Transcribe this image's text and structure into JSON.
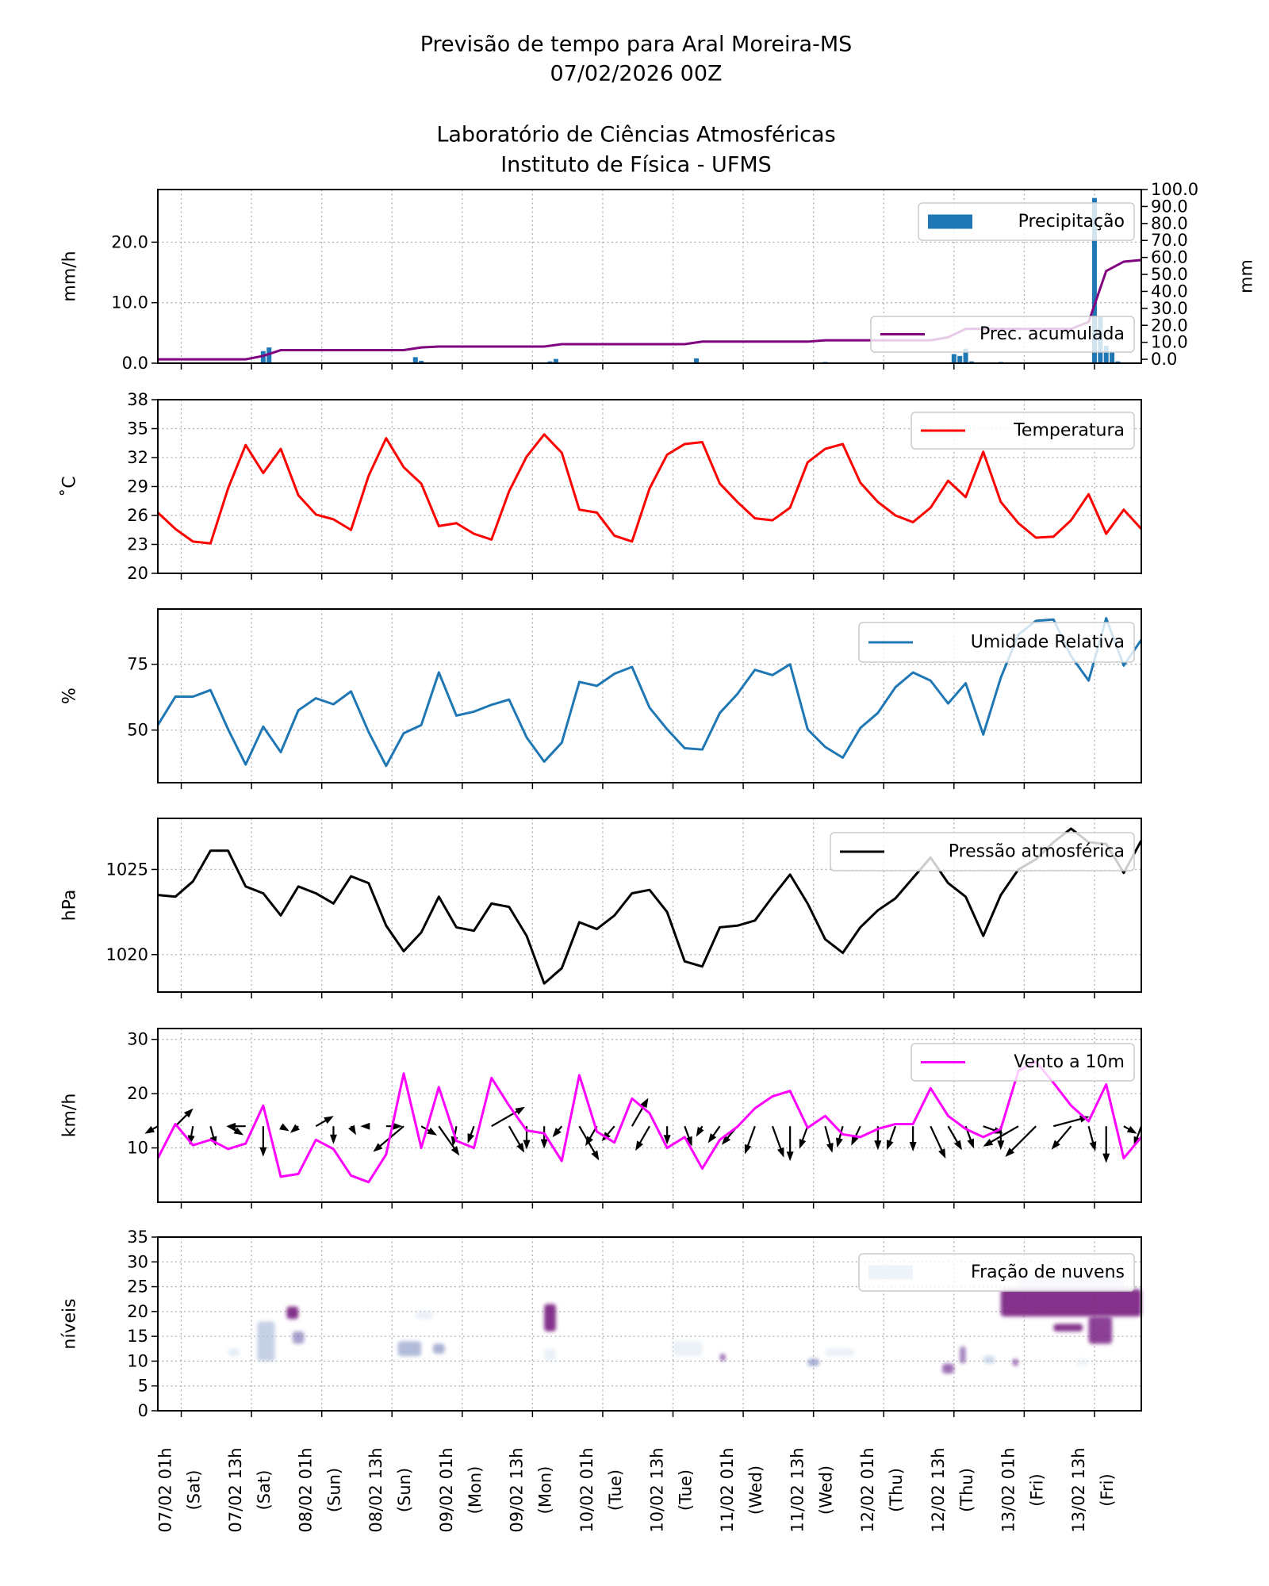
{
  "header": {
    "title_line1": "Previsão de tempo para Aral Moreira-MS",
    "title_line2": "07/02/2026 00Z",
    "subtitle_line1": "Laboratório de Ciências Atmosféricas",
    "subtitle_line2": "Instituto de Física - UFMS"
  },
  "time_axis": {
    "xlim": [
      "06/02 21h",
      "13/02 21h"
    ],
    "ticks": [
      {
        "time": "07/02 01h",
        "day": "(Sat)"
      },
      {
        "time": "07/02 13h",
        "day": "(Sat)"
      },
      {
        "time": "08/02 01h",
        "day": "(Sun)"
      },
      {
        "time": "08/02 13h",
        "day": "(Sun)"
      },
      {
        "time": "09/02 01h",
        "day": "(Mon)"
      },
      {
        "time": "09/02 13h",
        "day": "(Mon)"
      },
      {
        "time": "10/02 01h",
        "day": "(Tue)"
      },
      {
        "time": "10/02 13h",
        "day": "(Tue)"
      },
      {
        "time": "11/02 01h",
        "day": "(Wed)"
      },
      {
        "time": "11/02 13h",
        "day": "(Wed)"
      },
      {
        "time": "12/02 01h",
        "day": "(Thu)"
      },
      {
        "time": "12/02 13h",
        "day": "(Thu)"
      },
      {
        "time": "13/02 01h",
        "day": "(Fri)"
      },
      {
        "time": "13/02 13h",
        "day": "(Fri)"
      }
    ],
    "times": [
      "06/02 21h",
      "07/02 00h",
      "07/02 03h",
      "07/02 06h",
      "07/02 09h",
      "07/02 12h",
      "07/02 15h",
      "07/02 18h",
      "07/02 21h",
      "08/02 00h",
      "08/02 03h",
      "08/02 06h",
      "08/02 09h",
      "08/02 12h",
      "08/02 15h",
      "08/02 18h",
      "08/02 21h",
      "09/02 00h",
      "09/02 03h",
      "09/02 06h",
      "09/02 09h",
      "09/02 12h",
      "09/02 15h",
      "09/02 18h",
      "09/02 21h",
      "10/02 00h",
      "10/02 03h",
      "10/02 06h",
      "10/02 09h",
      "10/02 12h",
      "10/02 15h",
      "10/02 18h",
      "10/02 21h",
      "11/02 00h",
      "11/02 03h",
      "11/02 06h",
      "11/02 09h",
      "11/02 12h",
      "11/02 15h",
      "11/02 18h",
      "11/02 21h",
      "12/02 00h",
      "12/02 03h",
      "12/02 06h",
      "12/02 09h",
      "12/02 12h",
      "12/02 15h",
      "12/02 18h",
      "12/02 21h",
      "13/02 00h",
      "13/02 03h",
      "13/02 06h",
      "13/02 09h",
      "13/02 12h",
      "13/02 15h",
      "13/02 18h",
      "13/02 21h"
    ]
  },
  "chart_data": [
    {
      "type": "bar",
      "ylabel": "mm/h",
      "ylabel_right": "mm",
      "ylim": [
        0,
        28.7
      ],
      "ylim_right": [
        -2.3,
        100
      ],
      "yticks": [
        "0.0",
        "10.0",
        "20.0"
      ],
      "yticks_right": [
        "0.0",
        "10.0",
        "20.0",
        "30.0",
        "40.0",
        "50.0",
        "60.0",
        "70.0",
        "80.0",
        "90.0",
        "100.0"
      ],
      "grid": true,
      "legend_placement": "top-right",
      "bars": {
        "name": "Precipitação",
        "color": "#1f77b4",
        "x": [
          "07/02 15h",
          "07/02 16h",
          "07/02 17h",
          "08/02 17h",
          "08/02 18h",
          "09/02 16h",
          "09/02 17h",
          "10/02 17h",
          "10/02 18h",
          "11/02 15h",
          "12/02 13h",
          "12/02 14h",
          "12/02 15h",
          "12/02 16h",
          "12/02 21h",
          "13/02 12h",
          "13/02 13h",
          "13/02 14h",
          "13/02 15h",
          "13/02 16h",
          "13/02 17h"
        ],
        "values": [
          2.0,
          2.6,
          0.1,
          1.0,
          0.4,
          0.3,
          0.7,
          0.8,
          0.1,
          0.2,
          1.5,
          1.2,
          2.4,
          0.3,
          0.2,
          0.1,
          27.3,
          7.6,
          2.9,
          1.9,
          0.3
        ]
      },
      "series": [
        {
          "name": "Prec. acumulada",
          "color": "#800080",
          "axis": "right",
          "values": [
            0,
            0,
            0,
            0,
            0,
            0,
            2.0,
            5.4,
            5.4,
            5.4,
            5.4,
            5.4,
            5.4,
            5.4,
            5.4,
            7.0,
            7.5,
            7.5,
            7.5,
            7.5,
            7.5,
            7.5,
            7.5,
            8.9,
            8.9,
            8.9,
            8.9,
            8.9,
            8.9,
            8.9,
            8.9,
            10.4,
            10.4,
            10.4,
            10.4,
            10.4,
            10.4,
            10.4,
            11.2,
            11.2,
            11.2,
            11.2,
            11.2,
            11.2,
            11.2,
            13.0,
            17.9,
            17.9,
            17.9,
            17.9,
            17.9,
            17.9,
            17.9,
            22.0,
            52.0,
            57.5,
            58.5
          ]
        }
      ]
    },
    {
      "type": "line",
      "ylabel": "˚C",
      "ylim": [
        20,
        38
      ],
      "yticks": [
        "20",
        "23",
        "26",
        "29",
        "32",
        "35",
        "38"
      ],
      "grid": true,
      "legend_placement": "top-right",
      "series": [
        {
          "name": "Temperatura",
          "color": "#ff0000",
          "values": [
            26.3,
            24.6,
            23.3,
            23.1,
            28.8,
            33.3,
            30.4,
            32.9,
            28.1,
            26.1,
            25.6,
            24.5,
            30.1,
            34.0,
            31.0,
            29.3,
            24.9,
            25.2,
            24.1,
            23.5,
            28.5,
            32.1,
            34.4,
            32.5,
            26.6,
            26.3,
            23.9,
            23.3,
            28.8,
            32.3,
            33.4,
            33.6,
            29.3,
            27.4,
            25.7,
            25.5,
            26.8,
            31.5,
            32.9,
            33.4,
            29.4,
            27.4,
            26.0,
            25.3,
            26.8,
            29.6,
            27.9,
            32.6,
            27.4,
            25.2,
            23.7,
            23.8,
            25.5,
            28.2,
            24.1,
            26.6,
            24.6
          ]
        }
      ]
    },
    {
      "type": "line",
      "ylabel": "%",
      "ylim": [
        30,
        96
      ],
      "yticks": [
        "50",
        "75"
      ],
      "grid": true,
      "legend_placement": "top-right",
      "series": [
        {
          "name": "Umidade Relativa",
          "color": "#1f77b4",
          "values": [
            51.9,
            62.7,
            62.7,
            65.2,
            50.3,
            36.9,
            51.3,
            41.6,
            57.5,
            62.1,
            59.8,
            64.7,
            49.3,
            36.4,
            48.8,
            51.9,
            71.9,
            55.5,
            57.0,
            59.6,
            61.6,
            47.2,
            38.0,
            45.2,
            68.3,
            66.8,
            71.4,
            74.0,
            58.5,
            50.3,
            43.1,
            42.6,
            56.5,
            63.7,
            72.9,
            70.9,
            75.0,
            50.3,
            43.6,
            39.5,
            50.8,
            56.5,
            66.3,
            71.9,
            68.8,
            60.1,
            67.8,
            48.3,
            69.9,
            86.3,
            91.5,
            92.0,
            78.1,
            68.8,
            92.5,
            74.5,
            84.3
          ]
        }
      ]
    },
    {
      "type": "line",
      "ylabel": "hPa",
      "ylim": [
        1017.8,
        1028.0
      ],
      "yticks": [
        "1020",
        "1025"
      ],
      "grid": true,
      "legend_placement": "top-right",
      "series": [
        {
          "name": "Pressão atmosférica",
          "color": "#000000",
          "values": [
            1023.5,
            1023.4,
            1024.3,
            1026.1,
            1026.1,
            1024.0,
            1023.6,
            1022.3,
            1024.0,
            1023.6,
            1023.0,
            1024.6,
            1024.2,
            1021.7,
            1020.2,
            1021.3,
            1023.4,
            1021.6,
            1021.4,
            1023.0,
            1022.8,
            1021.1,
            1018.3,
            1019.2,
            1021.9,
            1021.5,
            1022.3,
            1023.6,
            1023.8,
            1022.5,
            1019.6,
            1019.3,
            1021.6,
            1021.7,
            1022.0,
            1023.4,
            1024.7,
            1023.0,
            1020.9,
            1020.1,
            1021.6,
            1022.6,
            1023.3,
            1024.5,
            1025.7,
            1024.2,
            1023.4,
            1021.1,
            1023.5,
            1025.0,
            1025.6,
            1026.6,
            1027.4,
            1026.6,
            1026.5,
            1024.8,
            1026.7
          ]
        }
      ]
    },
    {
      "type": "line",
      "ylabel": "km/h",
      "ylim": [
        0,
        32
      ],
      "yticks": [
        "10",
        "20",
        "30"
      ],
      "grid": true,
      "legend_placement": "top-right",
      "series": [
        {
          "name": "Vento a 10m",
          "color": "#ff00ff",
          "values": [
            8.1,
            14.4,
            10.5,
            11.5,
            9.8,
            10.8,
            17.8,
            4.7,
            5.2,
            11.5,
            9.8,
            4.9,
            3.7,
            8.8,
            23.7,
            10.0,
            21.2,
            11.3,
            10.0,
            22.9,
            17.8,
            13.2,
            12.7,
            7.6,
            23.4,
            13.0,
            11.0,
            19.1,
            16.4,
            10.0,
            12.0,
            6.2,
            11.5,
            13.9,
            17.3,
            19.5,
            20.5,
            13.7,
            15.9,
            12.5,
            12.0,
            13.5,
            14.4,
            14.4,
            21.0,
            15.9,
            13.5,
            12.0,
            13.5,
            24.2,
            25.9,
            22.0,
            17.8,
            14.9,
            21.7,
            8.1,
            12.0
          ]
        }
      ],
      "wind_arrows": {
        "color": "#000000",
        "direction_deg": [
          240,
          45,
          190,
          165,
          120,
          270,
          180,
          120,
          230,
          60,
          180,
          150,
          270,
          90,
          230,
          120,
          145,
          190,
          200,
          60,
          150,
          180,
          180,
          220,
          150,
          210,
          220,
          30,
          210,
          180,
          160,
          210,
          215,
          220,
          200,
          160,
          180,
          200,
          165,
          195,
          205,
          180,
          200,
          180,
          155,
          150,
          160,
          110,
          180,
          240,
          225,
          75,
          220,
          165,
          180,
          120,
          200
        ]
      }
    },
    {
      "type": "heatmap",
      "ylabel": "níveis",
      "ylim": [
        0,
        35
      ],
      "yticks": [
        "0",
        "5",
        "10",
        "15",
        "20",
        "25",
        "30",
        "35"
      ],
      "grid": true,
      "legend_placement": "top-right",
      "legend": "Fração de nuvens",
      "colormap": [
        "#f7fcfd",
        "#bfd3e6",
        "#8c96c6",
        "#88419d",
        "#6e016b"
      ],
      "patches": [
        {
          "t": [
            "07/02 09h",
            "07/02 11h"
          ],
          "levels": [
            11,
            12.5
          ],
          "fraction": 0.15
        },
        {
          "t": [
            "07/02 14h",
            "07/02 17h"
          ],
          "levels": [
            10,
            18
          ],
          "fraction": 0.35
        },
        {
          "t": [
            "07/02 19h",
            "07/02 21h"
          ],
          "levels": [
            18.5,
            21
          ],
          "fraction": 0.9
        },
        {
          "t": [
            "07/02 20h",
            "07/02 22h"
          ],
          "levels": [
            13.5,
            16
          ],
          "fraction": 0.55
        },
        {
          "t": [
            "08/02 14h",
            "08/02 18h"
          ],
          "levels": [
            11,
            14
          ],
          "fraction": 0.45
        },
        {
          "t": [
            "08/02 17h",
            "08/02 20h"
          ],
          "levels": [
            18.5,
            20
          ],
          "fraction": 0.12
        },
        {
          "t": [
            "08/02 20h",
            "08/02 22h"
          ],
          "levels": [
            11.5,
            13.5
          ],
          "fraction": 0.5
        },
        {
          "t": [
            "09/02 15h",
            "09/02 17h"
          ],
          "levels": [
            16,
            21.5
          ],
          "fraction": 0.9
        },
        {
          "t": [
            "09/02 15h",
            "09/02 17h"
          ],
          "levels": [
            10,
            12.5
          ],
          "fraction": 0.12
        },
        {
          "t": [
            "10/02 13h",
            "10/02 18h"
          ],
          "levels": [
            11,
            14
          ],
          "fraction": 0.12
        },
        {
          "t": [
            "10/02 21h",
            "10/02 22h"
          ],
          "levels": [
            10,
            11.5
          ],
          "fraction": 0.7
        },
        {
          "t": [
            "11/02 12h",
            "11/02 14h"
          ],
          "levels": [
            9,
            10.5
          ],
          "fraction": 0.5
        },
        {
          "t": [
            "11/02 15h",
            "11/02 20h"
          ],
          "levels": [
            11,
            12.5
          ],
          "fraction": 0.12
        },
        {
          "t": [
            "12/02 11h",
            "12/02 13h"
          ],
          "levels": [
            7.5,
            9.5
          ],
          "fraction": 0.7
        },
        {
          "t": [
            "12/02 14h",
            "12/02 15h"
          ],
          "levels": [
            9.5,
            13
          ],
          "fraction": 0.65
        },
        {
          "t": [
            "12/02 18h",
            "12/02 20h"
          ],
          "levels": [
            9.5,
            11
          ],
          "fraction": 0.3
        },
        {
          "t": [
            "12/02 23h",
            "13/02 00h"
          ],
          "levels": [
            9,
            10.5
          ],
          "fraction": 0.7
        },
        {
          "t": [
            "13/02 00h",
            "13/02 18h"
          ],
          "levels": [
            24.5,
            27.5
          ],
          "fraction": 0.25
        },
        {
          "t": [
            "12/02 21h",
            "13/02 21h"
          ],
          "levels": [
            19,
            24.5
          ],
          "fraction": 0.9
        },
        {
          "t": [
            "13/02 06h",
            "13/02 11h"
          ],
          "levels": [
            16,
            17.5
          ],
          "fraction": 0.9
        },
        {
          "t": [
            "13/02 12h",
            "13/02 16h"
          ],
          "levels": [
            13.5,
            19
          ],
          "fraction": 0.85
        },
        {
          "t": [
            "13/02 10h",
            "13/02 12h"
          ],
          "levels": [
            9,
            10.5
          ],
          "fraction": 0.1
        }
      ]
    }
  ]
}
